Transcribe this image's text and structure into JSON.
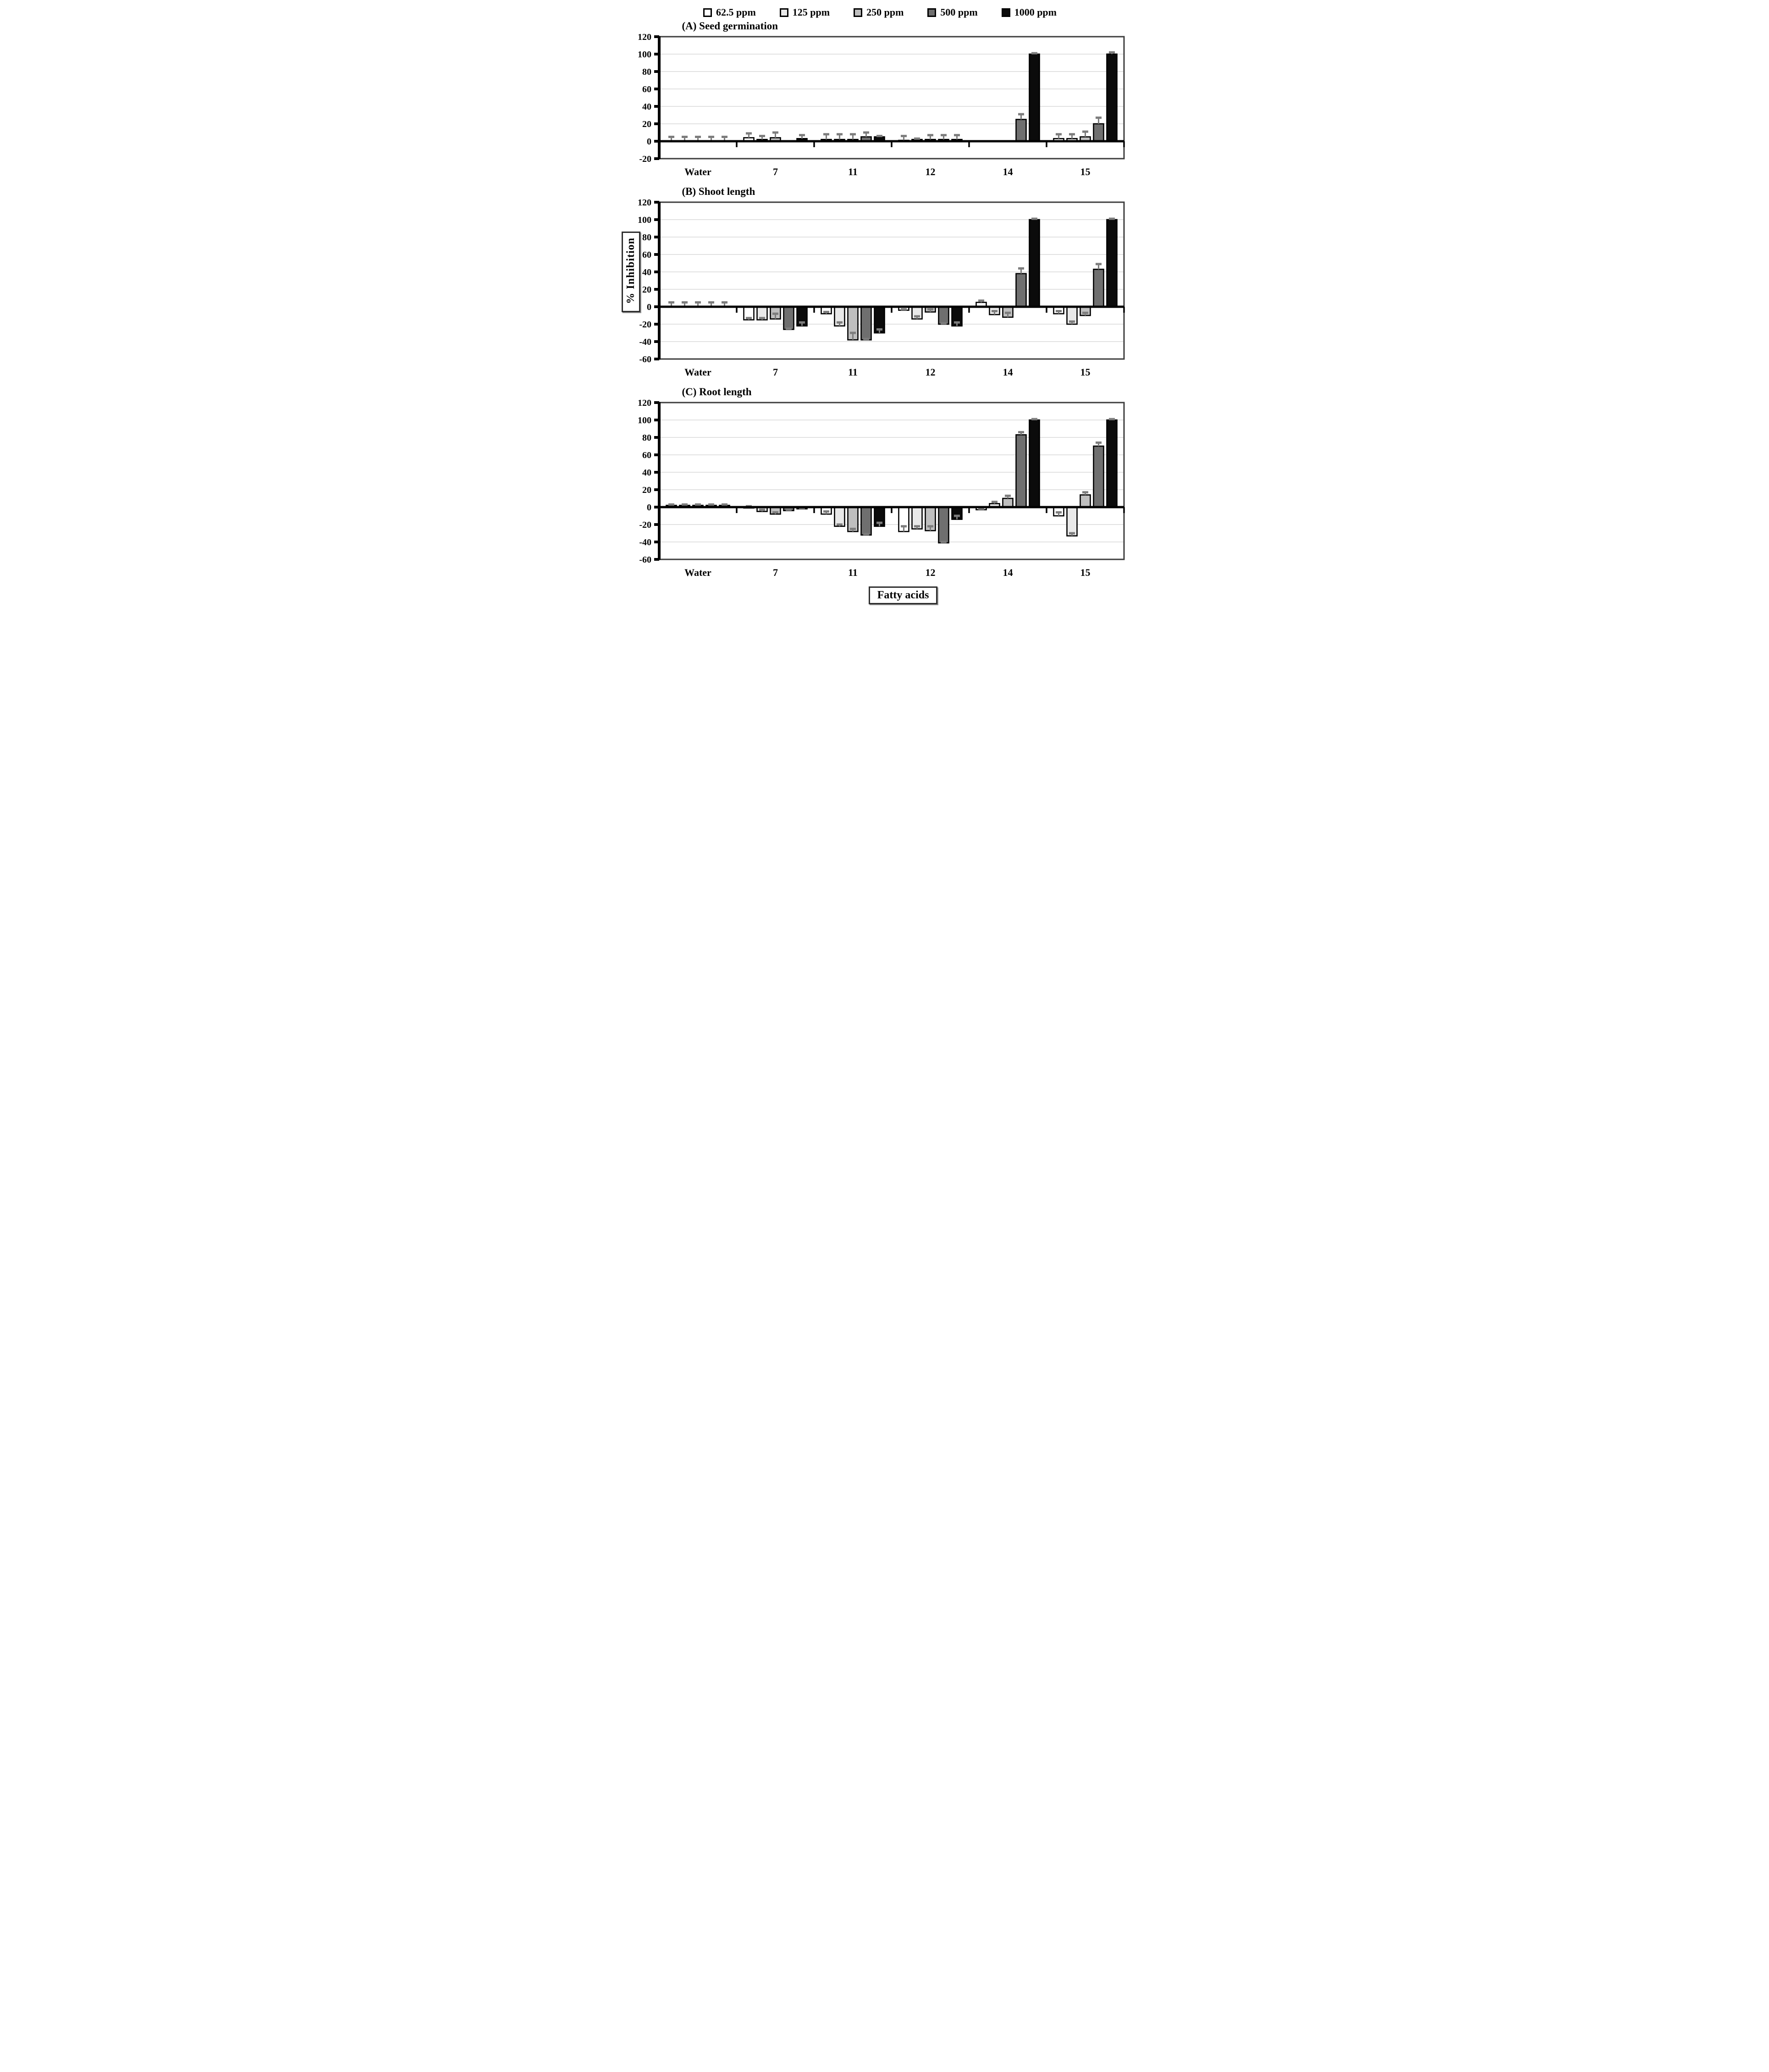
{
  "figure": {
    "ylabel": "% Inhibition",
    "xlabel": "Fatty acids"
  },
  "legend": [
    {
      "label": "62.5 ppm",
      "color": "#ffffff"
    },
    {
      "label": "125 ppm",
      "color": "#e9e9e9"
    },
    {
      "label": "250 ppm",
      "color": "#bfbfbf"
    },
    {
      "label": "500 ppm",
      "color": "#6f6f6f"
    },
    {
      "label": "1000 ppm",
      "color": "#0b0b0b"
    }
  ],
  "style": {
    "grid_color": "#e2e2e2",
    "border_color": "#3d3d3d",
    "error_color": "#7d7d7d",
    "axis_color": "#000000"
  },
  "chart_data": [
    {
      "type": "bar",
      "id": "a",
      "title": "(A) Seed germination",
      "ylim": [
        -20,
        120
      ],
      "ytick_step": 20,
      "grid": true,
      "categories": [
        "Water",
        "7",
        "11",
        "12",
        "14",
        "15"
      ],
      "series": [
        {
          "name": "62.5 ppm",
          "color": "#ffffff",
          "values": [
            0,
            4,
            2,
            1,
            0,
            3
          ],
          "errors": [
            5,
            5,
            6,
            5,
            0,
            5
          ]
        },
        {
          "name": "125 ppm",
          "color": "#e9e9e9",
          "values": [
            0,
            2,
            2,
            2,
            0,
            3
          ],
          "errors": [
            5,
            4,
            6,
            1,
            0,
            5
          ]
        },
        {
          "name": "250 ppm",
          "color": "#bfbfbf",
          "values": [
            0,
            4,
            2,
            2,
            0,
            5
          ],
          "errors": [
            5,
            6,
            6,
            5,
            0,
            6
          ]
        },
        {
          "name": "500 ppm",
          "color": "#6f6f6f",
          "values": [
            0,
            0,
            5,
            2,
            25,
            20
          ],
          "errors": [
            5,
            0,
            5,
            5,
            6,
            7
          ]
        },
        {
          "name": "1000 ppm",
          "color": "#0b0b0b",
          "values": [
            0,
            3,
            5,
            2,
            100,
            100
          ],
          "errors": [
            5,
            4,
            1,
            5,
            1,
            2
          ]
        }
      ]
    },
    {
      "type": "bar",
      "id": "b",
      "title": "(B) Shoot length",
      "ylim": [
        -60,
        120
      ],
      "ytick_step": 20,
      "grid": true,
      "categories": [
        "Water",
        "7",
        "11",
        "12",
        "14",
        "15"
      ],
      "series": [
        {
          "name": "62.5 ppm",
          "color": "#ffffff",
          "values": [
            0,
            -15,
            -8,
            -4,
            5,
            -8
          ],
          "errors": [
            5,
            2,
            2,
            1,
            2,
            3
          ]
        },
        {
          "name": "125 ppm",
          "color": "#e9e9e9",
          "values": [
            0,
            -15,
            -22,
            -14,
            -9,
            -20
          ],
          "errors": [
            5,
            2,
            4,
            3,
            4,
            3
          ]
        },
        {
          "name": "250 ppm",
          "color": "#bfbfbf",
          "values": [
            0,
            -14,
            -38,
            -6,
            -12,
            -10
          ],
          "errors": [
            5,
            6,
            8,
            3,
            5,
            3
          ]
        },
        {
          "name": "500 ppm",
          "color": "#6f6f6f",
          "values": [
            0,
            -26,
            -38,
            -20,
            38,
            43
          ],
          "errors": [
            5,
            1,
            1,
            1,
            6,
            6
          ]
        },
        {
          "name": "1000 ppm",
          "color": "#0b0b0b",
          "values": [
            0,
            -22,
            -30,
            -22,
            100,
            100
          ],
          "errors": [
            5,
            4,
            4,
            4,
            1,
            1
          ]
        }
      ]
    },
    {
      "type": "bar",
      "id": "c",
      "title": "(C) Root length",
      "ylim": [
        -60,
        120
      ],
      "ytick_step": 20,
      "grid": true,
      "categories": [
        "Water",
        "7",
        "11",
        "12",
        "14",
        "15"
      ],
      "series": [
        {
          "name": "62.5 ppm",
          "color": "#ffffff",
          "values": [
            2,
            -1,
            -8,
            -28,
            -3,
            -10
          ],
          "errors": [
            1,
            2,
            3,
            6,
            1,
            4
          ]
        },
        {
          "name": "125 ppm",
          "color": "#e9e9e9",
          "values": [
            2,
            -5,
            -22,
            -25,
            4,
            -33
          ],
          "errors": [
            1,
            2,
            2,
            3,
            2,
            3
          ]
        },
        {
          "name": "250 ppm",
          "color": "#bfbfbf",
          "values": [
            2,
            -8,
            -28,
            -27,
            10,
            14
          ],
          "errors": [
            1,
            2,
            3,
            5,
            3,
            3
          ]
        },
        {
          "name": "500 ppm",
          "color": "#6f6f6f",
          "values": [
            2,
            -4,
            -32,
            -41,
            83,
            70
          ],
          "errors": [
            1,
            1,
            1,
            1,
            3,
            4
          ]
        },
        {
          "name": "1000 ppm",
          "color": "#0b0b0b",
          "values": [
            2,
            -2,
            -22,
            -14,
            100,
            100
          ],
          "errors": [
            1,
            1,
            4,
            4,
            1,
            1
          ]
        }
      ]
    }
  ]
}
